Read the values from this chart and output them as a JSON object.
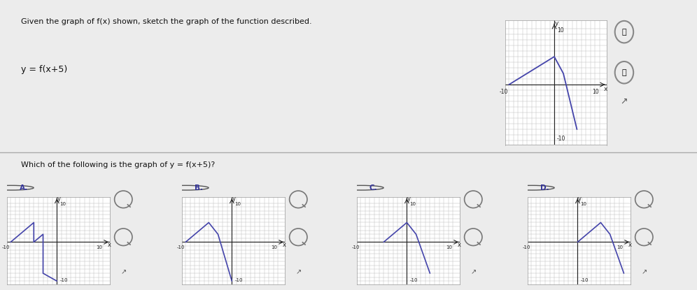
{
  "bg_color": "#ececec",
  "panel_bg": "#ffffff",
  "grid_color": "#c0c0c0",
  "axis_color": "#222222",
  "line_color": "#4444aa",
  "text_color": "#111111",
  "title": "Given the graph of f(x) shown, sketch the graph of the function described.",
  "subtitle": "y = f(x+5)",
  "question": "Which of the following is the graph of y = f(x+5)?",
  "fx_pts": [
    [
      -10,
      0
    ],
    [
      0,
      5
    ],
    [
      2,
      2
    ],
    [
      5,
      -8
    ]
  ],
  "graph_A_pts": [
    [
      -10,
      0
    ],
    [
      -5,
      5
    ],
    [
      -5,
      0
    ],
    [
      -3,
      2
    ],
    [
      -3,
      -8
    ],
    [
      0,
      -10
    ]
  ],
  "graph_B_pts": [
    [
      -10,
      0
    ],
    [
      -5,
      5
    ],
    [
      -3,
      2
    ],
    [
      0,
      -10
    ]
  ],
  "graph_C_pts": [
    [
      -5,
      0
    ],
    [
      0,
      5
    ],
    [
      2,
      2
    ],
    [
      5,
      -8
    ]
  ],
  "graph_D_pts": [
    [
      0,
      0
    ],
    [
      5,
      5
    ],
    [
      7,
      2
    ],
    [
      10,
      -8
    ]
  ],
  "xlim": [
    -10,
    10
  ],
  "ylim": [
    -10,
    10
  ]
}
